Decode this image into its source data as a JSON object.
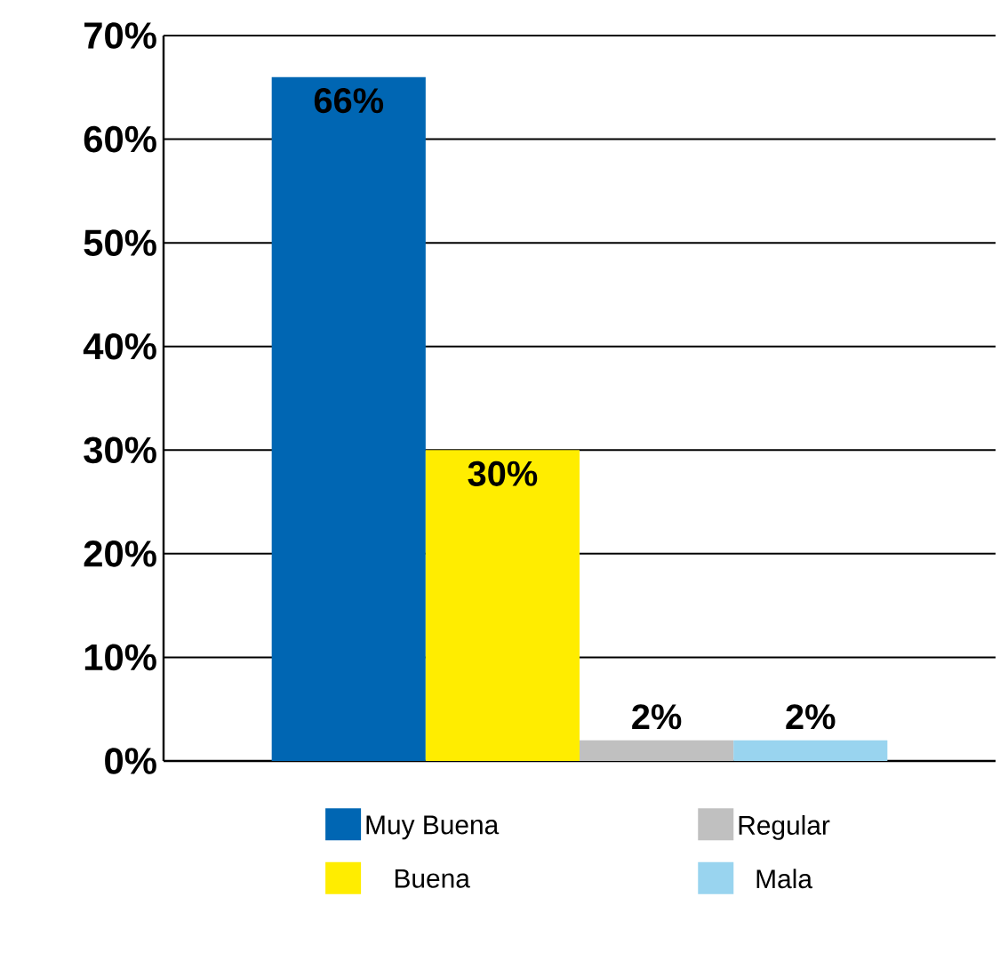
{
  "chart_data": {
    "type": "bar",
    "categories": [
      null
    ],
    "series": [
      {
        "name": "Muy Buena",
        "color": "#0066b3",
        "values": [
          66
        ],
        "value_labels": [
          "66%"
        ]
      },
      {
        "name": "Buena",
        "color": "#ffed00",
        "values": [
          30
        ],
        "value_labels": [
          "30%"
        ]
      },
      {
        "name": "Regular",
        "color": "#c0c0c0",
        "values": [
          2
        ],
        "value_labels": [
          "2%"
        ]
      },
      {
        "name": "Mala",
        "color": "#99d4ef",
        "values": [
          2
        ],
        "value_labels": [
          "2%"
        ]
      }
    ],
    "ylim": [
      0,
      70
    ],
    "yticks": [
      {
        "value": 0,
        "label": "0%"
      },
      {
        "value": 10,
        "label": "10%"
      },
      {
        "value": 20,
        "label": "20%"
      },
      {
        "value": 30,
        "label": "30%"
      },
      {
        "value": 40,
        "label": "40%"
      },
      {
        "value": 50,
        "label": "50%"
      },
      {
        "value": 60,
        "label": "60%"
      },
      {
        "value": 70,
        "label": "70%"
      }
    ],
    "grid": "y",
    "legend": "bottom"
  }
}
